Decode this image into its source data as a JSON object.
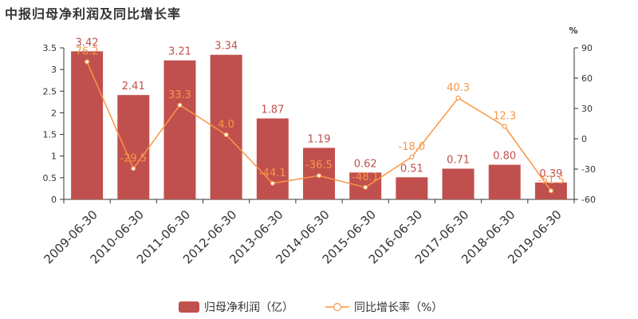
{
  "title": "中报归母净利润及同比增长率",
  "chart_data": {
    "type": "bar",
    "categories": [
      "2009-06-30",
      "2010-06-30",
      "2011-06-30",
      "2012-06-30",
      "2013-06-30",
      "2014-06-30",
      "2015-06-30",
      "2016-06-30",
      "2017-06-30",
      "2018-06-30",
      "2019-06-30"
    ],
    "series": [
      {
        "name": "归母净利润（亿）",
        "type": "bar",
        "axis": "left",
        "color": "#c0504d",
        "values": [
          3.42,
          2.41,
          3.21,
          3.34,
          1.87,
          1.19,
          0.62,
          0.51,
          0.71,
          0.8,
          0.39
        ],
        "labels": [
          "3.42",
          "2.41",
          "3.21",
          "3.34",
          "1.87",
          "1.19",
          "0.62",
          "0.51",
          "0.71",
          "0.80",
          "0.39"
        ]
      },
      {
        "name": "同比增长率（%）",
        "type": "line",
        "axis": "right",
        "color": "#f79646",
        "values": [
          76.2,
          -29.5,
          33.3,
          4.0,
          -44.1,
          -36.5,
          -48.1,
          -18.0,
          40.3,
          12.3,
          -51.5
        ],
        "labels": [
          "76.2",
          "-29.5",
          "33.3",
          "4.0",
          "-44.1",
          "-36.5",
          "-48.1",
          "-18.0",
          "40.3",
          "12.3",
          "-51.5"
        ]
      }
    ],
    "y_left": {
      "lim": [
        0,
        3.5
      ],
      "ticks": [
        "0",
        "0.5",
        "1",
        "1.5",
        "2",
        "2.5",
        "3",
        "3.5"
      ],
      "tick_values": [
        0,
        0.5,
        1,
        1.5,
        2,
        2.5,
        3,
        3.5
      ]
    },
    "y_right": {
      "lim": [
        -60,
        90
      ],
      "unit": "%",
      "ticks": [
        "-60",
        "-30",
        "0",
        "30",
        "60",
        "90"
      ],
      "tick_values": [
        -60,
        -30,
        0,
        30,
        60,
        90
      ]
    },
    "grid": false,
    "legend": "bottom-center"
  }
}
